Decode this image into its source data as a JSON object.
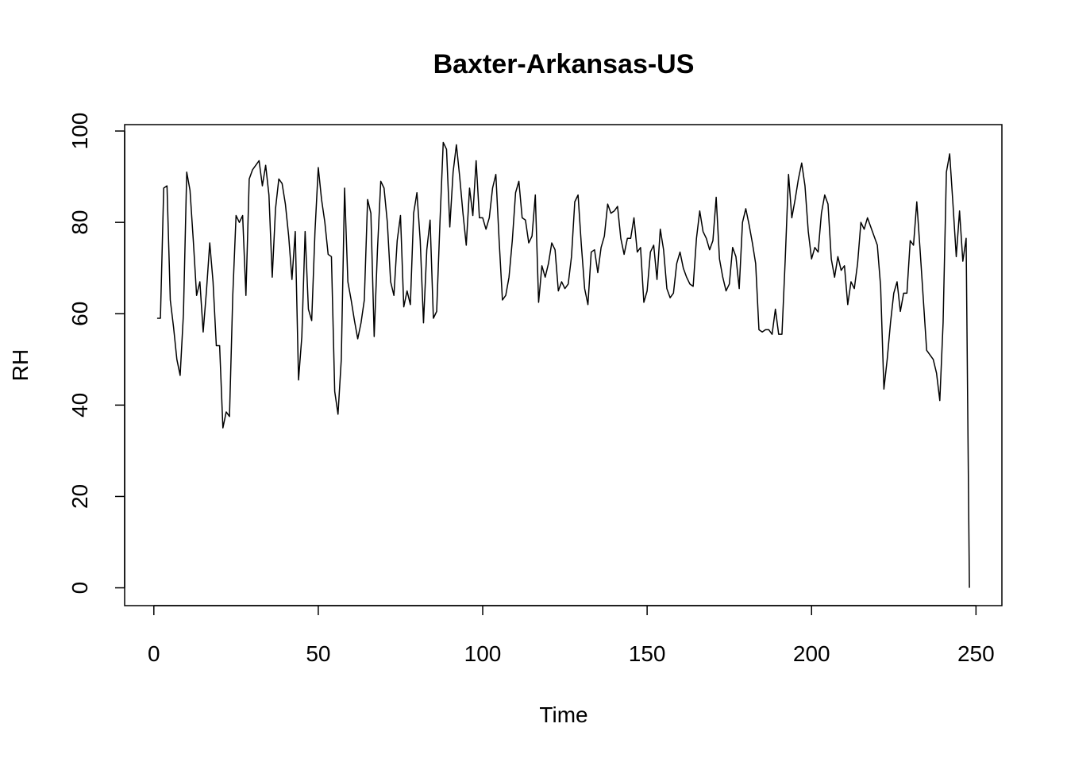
{
  "chart_data": {
    "type": "line",
    "title": "Baxter-Arkansas-US",
    "x_label": "Time",
    "y_label": "RH",
    "color": "#000000",
    "xlim": [
      -8.88,
      257.88
    ],
    "ylim": [
      -3.9,
      101.4
    ],
    "xticks": [
      0,
      50,
      100,
      150,
      200,
      250
    ],
    "yticks": [
      0,
      20,
      40,
      60,
      80,
      100
    ],
    "x": [
      1,
      2,
      3,
      4,
      5,
      6,
      7,
      8,
      9,
      10,
      11,
      12,
      13,
      14,
      15,
      16,
      17,
      18,
      19,
      20,
      21,
      22,
      23,
      24,
      25,
      26,
      27,
      28,
      29,
      30,
      31,
      32,
      33,
      34,
      35,
      36,
      37,
      38,
      39,
      40,
      41,
      42,
      43,
      44,
      45,
      46,
      47,
      48,
      49,
      50,
      51,
      52,
      53,
      54,
      55,
      56,
      57,
      58,
      59,
      60,
      61,
      62,
      63,
      64,
      65,
      66,
      67,
      68,
      69,
      70,
      71,
      72,
      73,
      74,
      75,
      76,
      77,
      78,
      79,
      80,
      81,
      82,
      83,
      84,
      85,
      86,
      87,
      88,
      89,
      90,
      91,
      92,
      93,
      94,
      95,
      96,
      97,
      98,
      99,
      100,
      101,
      102,
      103,
      104,
      105,
      106,
      107,
      108,
      109,
      110,
      111,
      112,
      113,
      114,
      115,
      116,
      117,
      118,
      119,
      120,
      121,
      122,
      123,
      124,
      125,
      126,
      127,
      128,
      129,
      130,
      131,
      132,
      133,
      134,
      135,
      136,
      137,
      138,
      139,
      140,
      141,
      142,
      143,
      144,
      145,
      146,
      147,
      148,
      149,
      150,
      151,
      152,
      153,
      154,
      155,
      156,
      157,
      158,
      159,
      160,
      161,
      162,
      163,
      164,
      165,
      166,
      167,
      168,
      169,
      170,
      171,
      172,
      173,
      174,
      175,
      176,
      177,
      178,
      179,
      180,
      181,
      182,
      183,
      184,
      185,
      186,
      187,
      188,
      189,
      190,
      191,
      192,
      193,
      194,
      195,
      196,
      197,
      198,
      199,
      200,
      201,
      202,
      203,
      204,
      205,
      206,
      207,
      208,
      209,
      210,
      211,
      212,
      213,
      214,
      215,
      216,
      217,
      218,
      219,
      220,
      221,
      222,
      223,
      224,
      225,
      226,
      227,
      228,
      229,
      230,
      231,
      232,
      233,
      234,
      235,
      236,
      237,
      238,
      239,
      240,
      241,
      242,
      243,
      244,
      245,
      246,
      247,
      248
    ],
    "values": [
      59,
      59,
      87.5,
      88,
      63,
      57,
      50,
      46.5,
      60,
      91,
      87,
      76,
      64,
      67,
      56,
      65,
      75.5,
      67,
      53,
      53,
      35,
      38.5,
      37.5,
      64,
      81.5,
      80,
      81.5,
      64,
      89.5,
      91.5,
      92.5,
      93.5,
      88,
      92.5,
      86,
      68,
      83,
      89.5,
      88.5,
      84,
      77,
      67.5,
      78,
      45.5,
      55,
      78,
      61,
      58.5,
      78,
      92,
      85,
      80,
      73,
      72.5,
      43,
      38,
      50,
      87.5,
      67,
      63,
      58.5,
      54.5,
      58,
      63,
      85,
      82,
      55,
      74,
      89,
      87.5,
      80,
      67,
      64,
      76,
      81.5,
      61.5,
      65,
      62,
      82,
      86.5,
      76,
      58,
      74,
      80.5,
      59,
      60.5,
      80,
      97.5,
      96,
      79,
      91,
      97,
      90,
      82,
      75,
      87.5,
      81.5,
      93.5,
      81,
      81,
      78.5,
      81,
      87.5,
      90.5,
      76,
      63,
      64,
      68,
      76,
      86.5,
      89,
      81,
      80.5,
      75.5,
      77,
      86,
      62.5,
      70.5,
      68,
      71,
      75.5,
      74,
      65,
      67,
      65.5,
      66.5,
      72.5,
      84.5,
      86,
      75,
      65.5,
      62,
      73.5,
      74,
      69,
      74.5,
      77,
      84,
      82,
      82.5,
      83.5,
      76.5,
      73,
      76.5,
      76.5,
      81,
      73.5,
      74.5,
      62.5,
      65,
      73.5,
      75,
      67.5,
      78.5,
      74,
      65.5,
      63.5,
      64.5,
      71,
      73.5,
      70,
      68,
      66.5,
      66,
      76.5,
      82.5,
      78,
      76.5,
      74,
      76,
      85.5,
      72,
      68,
      65,
      66.5,
      74.5,
      72.5,
      65.5,
      80,
      83,
      79.5,
      75.5,
      71,
      56.5,
      56,
      56.5,
      56.5,
      55.5,
      61,
      55.5,
      55.5,
      72,
      90.5,
      81,
      85,
      89.5,
      93,
      88,
      78,
      72,
      74.5,
      73.5,
      82,
      86,
      84,
      72,
      68,
      72.5,
      69.5,
      70.5,
      62,
      67,
      65.5,
      71,
      80,
      78.5,
      81,
      79,
      77,
      75,
      66,
      43.5,
      50,
      58,
      64.5,
      67,
      60.5,
      64.5,
      64.5,
      76,
      75,
      84.5,
      74,
      63,
      52,
      51,
      50,
      47,
      41,
      58,
      91,
      95,
      84,
      72.5,
      82.5,
      71.5,
      76.5,
      0
    ]
  }
}
